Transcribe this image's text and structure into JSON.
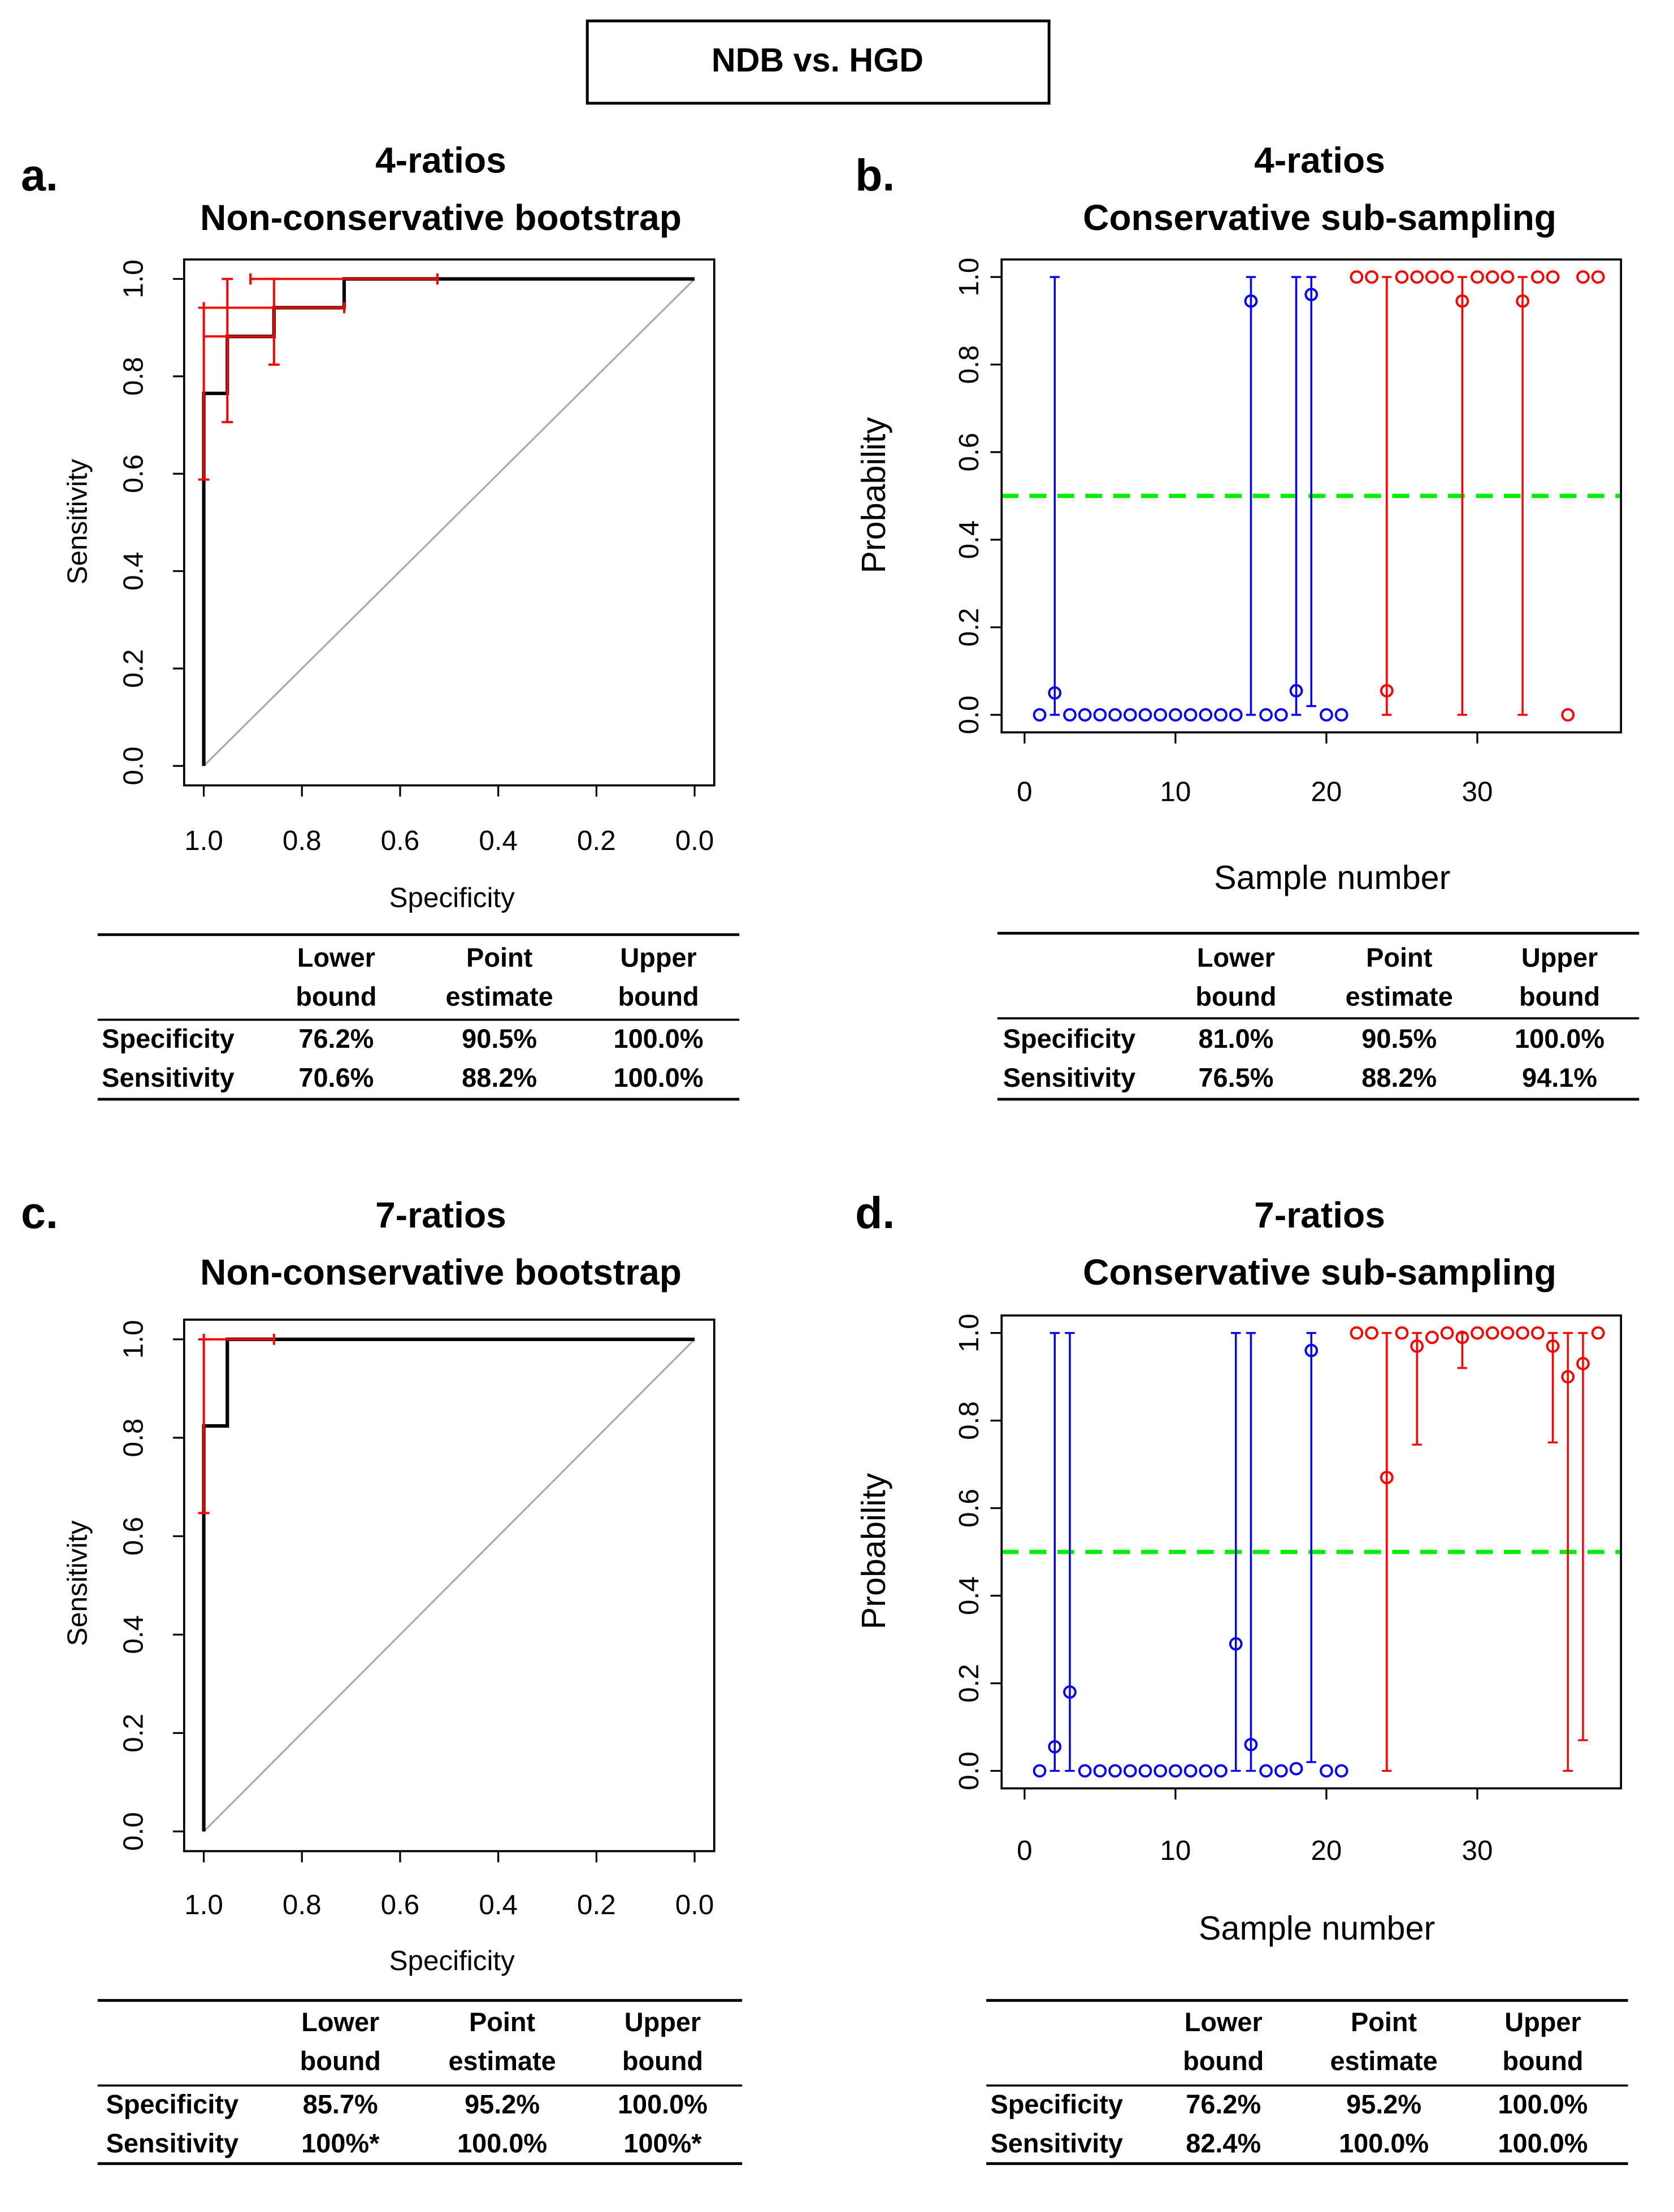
{
  "title": "NDB vs. HGD",
  "chart_data": [
    {
      "type": "roc",
      "label": "a.",
      "title": [
        "4-ratios",
        "Non-conservative bootstrap"
      ],
      "xlabel": "Specificity",
      "ylabel": "Sensitivity",
      "xlim": [
        1.04,
        -0.04
      ],
      "ylim": [
        -0.04,
        1.04
      ],
      "xticks": [
        {
          "value": 1,
          "label": "1.0"
        },
        0.8,
        0.6,
        0.4,
        0.2,
        {
          "value": 0,
          "label": "0.0"
        }
      ],
      "yticks": [
        {
          "value": 0,
          "label": "0.0"
        },
        0.2,
        0.4,
        0.6,
        0.8,
        {
          "value": 1,
          "label": "1.0"
        }
      ],
      "color": "#000000",
      "ci_color": "#ff0000",
      "diagonal_color": "#aaaaaa",
      "curve": {
        "x": [
          1,
          1,
          0.952,
          0.952,
          0.857,
          0.857,
          0.714,
          0.714,
          0
        ],
        "values": [
          0,
          0.765,
          0.765,
          0.882,
          0.882,
          0.941,
          0.941,
          1,
          1
        ]
      },
      "ci_h": [
        {
          "y": 1,
          "x": [
            0.905,
            0.524
          ]
        },
        {
          "y": 0.941,
          "x": [
            1,
            0.714
          ]
        },
        {
          "y": 0.882,
          "x": [
            1,
            0.857
          ]
        }
      ],
      "ci_v": [
        {
          "x": 1,
          "y": [
            0.588,
            0.941
          ]
        },
        {
          "x": 0.952,
          "y": [
            0.706,
            1
          ]
        },
        {
          "x": 0.857,
          "y": [
            0.824,
            1
          ]
        }
      ],
      "table": {
        "columns": [
          [
            "Lower",
            "bound"
          ],
          [
            "Point",
            "estimate"
          ],
          [
            "Upper",
            "bound"
          ]
        ],
        "rows": [
          [
            "Specificity",
            "76.2%",
            "90.5%",
            "100.0%"
          ],
          [
            "Sensitivity",
            "70.6%",
            "88.2%",
            "100.0%"
          ]
        ]
      }
    },
    {
      "type": "dot",
      "label": "b.",
      "title": [
        "4-ratios",
        "Conservative sub-sampling"
      ],
      "xlabel": "Sample number",
      "ylabel": "Probability",
      "xlim": [
        -1.52,
        39.52
      ],
      "ylim": [
        -0.04,
        1.04
      ],
      "xticks": [
        0,
        10,
        20,
        30
      ],
      "yticks": [
        {
          "value": 0,
          "label": "0.0"
        },
        0.2,
        0.4,
        0.6,
        0.8,
        {
          "value": 1,
          "label": "1.0"
        }
      ],
      "threshold": {
        "value": 0.5,
        "color": "#00ee00"
      },
      "series": [
        {
          "color": "#0000ff",
          "x": [
            1,
            2,
            3,
            4,
            5,
            6,
            7,
            8,
            9,
            10,
            11,
            12,
            13,
            14,
            15,
            16,
            17,
            18,
            19,
            20,
            21
          ],
          "values": [
            0,
            0.05,
            0,
            0,
            0,
            0,
            0,
            0,
            0,
            0,
            0,
            0,
            0,
            0,
            0.945,
            0,
            0,
            0.055,
            0.96,
            0,
            0
          ],
          "lower": [
            null,
            0,
            null,
            null,
            null,
            null,
            null,
            null,
            null,
            null,
            null,
            null,
            null,
            null,
            0,
            null,
            null,
            0,
            0.02,
            null,
            null
          ],
          "upper": [
            null,
            1,
            null,
            null,
            null,
            null,
            null,
            null,
            null,
            null,
            null,
            null,
            null,
            null,
            1,
            null,
            null,
            1,
            1,
            null,
            null
          ]
        },
        {
          "color": "#ff0000",
          "x": [
            22,
            23,
            24,
            25,
            26,
            27,
            28,
            29,
            30,
            31,
            32,
            33,
            34,
            35,
            36,
            37,
            38
          ],
          "values": [
            1,
            1,
            0.055,
            1,
            1,
            1,
            1,
            0.945,
            1,
            1,
            1,
            0.945,
            1,
            1,
            0,
            1,
            1
          ],
          "lower": [
            null,
            null,
            0,
            null,
            null,
            null,
            null,
            0,
            null,
            null,
            null,
            0,
            null,
            null,
            null,
            null,
            null
          ],
          "upper": [
            null,
            null,
            1,
            null,
            null,
            null,
            null,
            1,
            null,
            null,
            null,
            1,
            null,
            null,
            null,
            null,
            null
          ]
        }
      ],
      "table": {
        "columns": [
          [
            "Lower",
            "bound"
          ],
          [
            "Point",
            "estimate"
          ],
          [
            "Upper",
            "bound"
          ]
        ],
        "rows": [
          [
            "Specificity",
            "81.0%",
            "90.5%",
            "100.0%"
          ],
          [
            "Sensitivity",
            "76.5%",
            "88.2%",
            "94.1%"
          ]
        ]
      }
    },
    {
      "type": "roc",
      "label": "c.",
      "title": [
        "7-ratios",
        "Non-conservative bootstrap"
      ],
      "xlabel": "Specificity",
      "ylabel": "Sensitivity",
      "xlim": [
        1.04,
        -0.04
      ],
      "ylim": [
        -0.04,
        1.04
      ],
      "xticks": [
        {
          "value": 1,
          "label": "1.0"
        },
        0.8,
        0.6,
        0.4,
        0.2,
        {
          "value": 0,
          "label": "0.0"
        }
      ],
      "yticks": [
        {
          "value": 0,
          "label": "0.0"
        },
        0.2,
        0.4,
        0.6,
        0.8,
        {
          "value": 1,
          "label": "1.0"
        }
      ],
      "color": "#000000",
      "ci_color": "#ff0000",
      "diagonal_color": "#aaaaaa",
      "curve": {
        "x": [
          1,
          1,
          0.952,
          0.952,
          0
        ],
        "values": [
          0,
          0.824,
          0.824,
          1,
          1
        ]
      },
      "ci_h": [
        {
          "y": 1,
          "x": [
            1,
            0.857
          ]
        }
      ],
      "ci_v": [
        {
          "x": 1,
          "y": [
            0.647,
            1
          ]
        }
      ],
      "table": {
        "columns": [
          [
            "Lower",
            "bound"
          ],
          [
            "Point",
            "estimate"
          ],
          [
            "Upper",
            "bound"
          ]
        ],
        "rows": [
          [
            "Specificity",
            "85.7%",
            "95.2%",
            "100.0%"
          ],
          [
            "Sensitivity",
            "100%*",
            "100.0%",
            "100%*"
          ]
        ]
      }
    },
    {
      "type": "dot",
      "label": "d.",
      "title": [
        "7-ratios",
        "Conservative sub-sampling"
      ],
      "xlabel": "Sample number",
      "ylabel": "Probability",
      "xlim": [
        -1.52,
        39.52
      ],
      "ylim": [
        -0.04,
        1.04
      ],
      "xticks": [
        0,
        10,
        20,
        30
      ],
      "yticks": [
        {
          "value": 0,
          "label": "0.0"
        },
        0.2,
        0.4,
        0.6,
        0.8,
        {
          "value": 1,
          "label": "1.0"
        }
      ],
      "threshold": {
        "value": 0.5,
        "color": "#00ee00"
      },
      "series": [
        {
          "color": "#0000ff",
          "x": [
            1,
            2,
            3,
            4,
            5,
            6,
            7,
            8,
            9,
            10,
            11,
            12,
            13,
            14,
            15,
            16,
            17,
            18,
            19,
            20,
            21
          ],
          "values": [
            0,
            0.055,
            0.18,
            0,
            0,
            0,
            0,
            0,
            0,
            0,
            0,
            0,
            0,
            0.29,
            0.06,
            0,
            0,
            0.005,
            0.96,
            0,
            0
          ],
          "lower": [
            null,
            0,
            0,
            null,
            null,
            null,
            null,
            null,
            null,
            null,
            null,
            null,
            null,
            0,
            0,
            null,
            null,
            null,
            0.02,
            null,
            null
          ],
          "upper": [
            null,
            1,
            1,
            null,
            null,
            null,
            null,
            null,
            null,
            null,
            null,
            null,
            null,
            1,
            1,
            null,
            null,
            null,
            1,
            null,
            null
          ]
        },
        {
          "color": "#ff0000",
          "x": [
            22,
            23,
            24,
            25,
            26,
            27,
            28,
            29,
            30,
            31,
            32,
            33,
            34,
            35,
            36,
            37,
            38
          ],
          "values": [
            1,
            1,
            0.67,
            1,
            0.97,
            0.99,
            1,
            0.99,
            1,
            1,
            1,
            1,
            1,
            0.97,
            0.9,
            0.93,
            1
          ],
          "lower": [
            null,
            null,
            0,
            null,
            0.745,
            null,
            null,
            0.92,
            null,
            null,
            null,
            null,
            null,
            0.75,
            0,
            0.07,
            null
          ],
          "upper": [
            null,
            null,
            1,
            null,
            1,
            null,
            null,
            1,
            null,
            null,
            null,
            null,
            null,
            1,
            1,
            1,
            null
          ]
        }
      ],
      "table": {
        "columns": [
          [
            "Lower",
            "bound"
          ],
          [
            "Point",
            "estimate"
          ],
          [
            "Upper",
            "bound"
          ]
        ],
        "rows": [
          [
            "Specificity",
            "76.2%",
            "95.2%",
            "100.0%"
          ],
          [
            "Sensitivity",
            "82.4%",
            "100.0%",
            "100.0%"
          ]
        ]
      }
    }
  ]
}
